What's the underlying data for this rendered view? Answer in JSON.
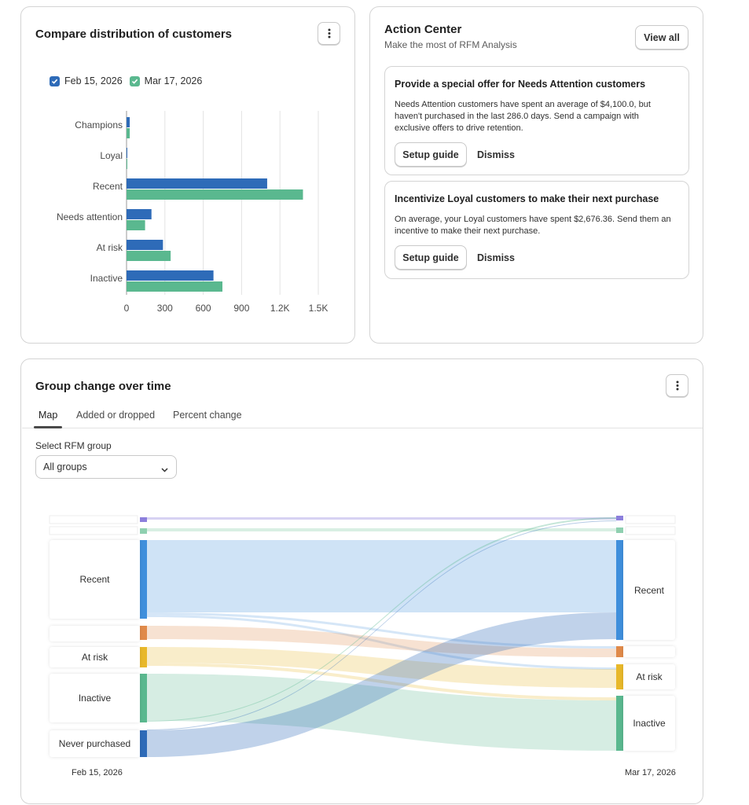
{
  "distribution_card": {
    "title": "Compare distribution of customers",
    "menu_icon": "vertical-dots-icon",
    "legend": [
      {
        "label": "Feb 15, 2026",
        "color": "#2e6bb8"
      },
      {
        "label": "Mar 17, 2026",
        "color": "#5ab88f"
      }
    ],
    "chart_data": {
      "type": "bar",
      "orientation": "horizontal",
      "categories": [
        "Champions",
        "Loyal",
        "Recent",
        "Needs attention",
        "At risk",
        "Inactive"
      ],
      "series": [
        {
          "name": "Feb 15, 2026",
          "color": "#2e6bb8",
          "values": [
            25,
            2,
            1100,
            195,
            285,
            680
          ]
        },
        {
          "name": "Mar 17, 2026",
          "color": "#5ab88f",
          "values": [
            25,
            2,
            1380,
            145,
            345,
            750
          ]
        }
      ],
      "x_ticks": [
        "0",
        "300",
        "600",
        "900",
        "1.2K",
        "1.5K"
      ],
      "x_tick_values": [
        0,
        300,
        600,
        900,
        1200,
        1500
      ],
      "xlim": [
        0,
        1500
      ],
      "grid": "vertical"
    }
  },
  "action_center": {
    "title": "Action Center",
    "subtitle": "Make the most of RFM Analysis",
    "view_all": "View all",
    "items": [
      {
        "title": "Provide a special offer for Needs Attention customers",
        "body": "Needs Attention customers have spent an average of $4,100.0, but haven't purchased in the last 286.0 days. Send a campaign with exclusive offers to drive retention.",
        "primary": "Setup guide",
        "secondary": "Dismiss"
      },
      {
        "title": "Incentivize Loyal customers to make their next purchase",
        "body": "On average, your Loyal customers have spent $2,676.36. Send them an incentive to make their next purchase.",
        "primary": "Setup guide",
        "secondary": "Dismiss"
      }
    ]
  },
  "group_change": {
    "title": "Group change over time",
    "menu_icon": "vertical-dots-icon",
    "tabs": [
      "Map",
      "Added or dropped",
      "Percent change"
    ],
    "active_tab": 0,
    "select_label": "Select RFM group",
    "select_value": "All groups",
    "select_icon": "chevron-down-icon",
    "left_date": "Feb 15, 2026",
    "right_date": "Mar 17, 2026",
    "left_nodes": [
      {
        "label": "",
        "color": "#8c7fdc"
      },
      {
        "label": "",
        "color": "#8fd0b0"
      },
      {
        "label": "Recent",
        "color": "#3f8fdc"
      },
      {
        "label": "",
        "color": "#e08a4a"
      },
      {
        "label": "At risk",
        "color": "#e8b82a"
      },
      {
        "label": "Inactive",
        "color": "#5ab88f"
      },
      {
        "label": "Never purchased",
        "color": "#2e6bb8"
      }
    ],
    "right_nodes": [
      {
        "label": "",
        "color": "#8c7fdc"
      },
      {
        "label": "",
        "color": "#8fd0b0"
      },
      {
        "label": "Recent",
        "color": "#3f8fdc"
      },
      {
        "label": "",
        "color": "#e08a4a"
      },
      {
        "label": "At risk",
        "color": "#e8b82a"
      },
      {
        "label": "Inactive",
        "color": "#5ab88f"
      }
    ]
  }
}
